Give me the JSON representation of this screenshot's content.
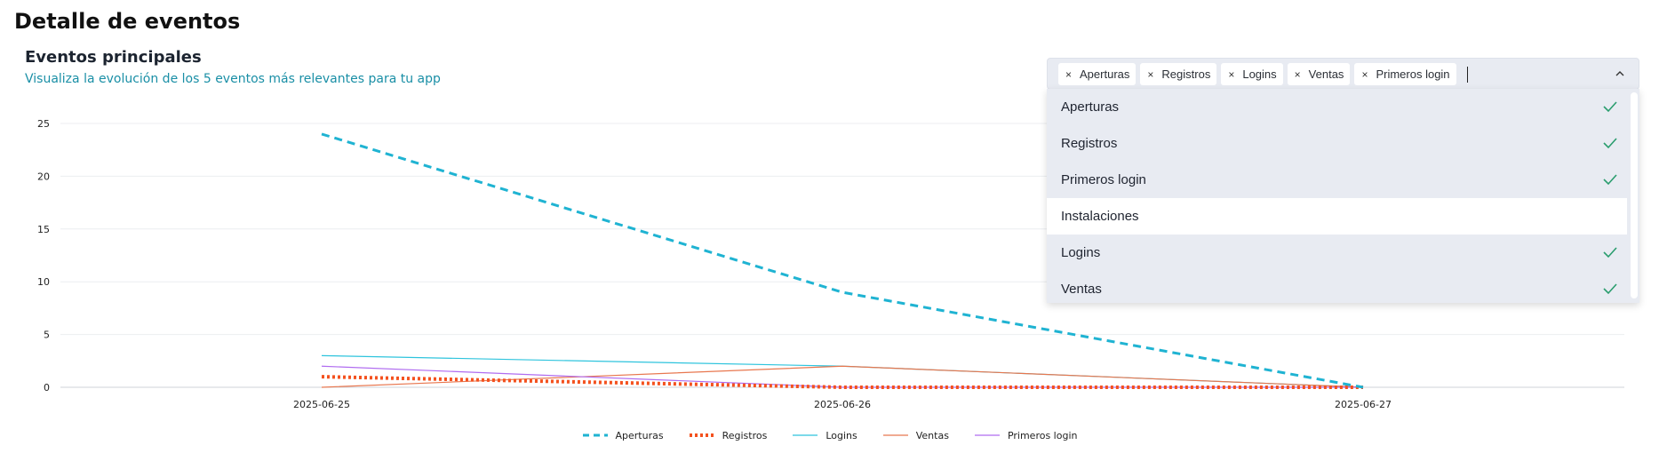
{
  "page": {
    "title": "Detalle de eventos"
  },
  "card": {
    "title": "Eventos principales",
    "subtitle": "Visualiza la evolución de los 5 eventos más relevantes para tu app"
  },
  "colors": {
    "aperturas": "#1fb3d2",
    "registros": "#f4511e",
    "logins": "#2ec4dd",
    "ventas": "#e8774f",
    "primeros_login": "#b06cf0",
    "check": "#2a9d6e"
  },
  "multiselect": {
    "chips": [
      "Aperturas",
      "Registros",
      "Logins",
      "Ventas",
      "Primeros login"
    ],
    "remove_glyph": "×",
    "options": [
      {
        "label": "Aperturas",
        "selected": true
      },
      {
        "label": "Registros",
        "selected": true
      },
      {
        "label": "Primeros login",
        "selected": true
      },
      {
        "label": "Instalaciones",
        "selected": false
      },
      {
        "label": "Logins",
        "selected": true
      },
      {
        "label": "Ventas",
        "selected": true
      }
    ],
    "chevron_icon": "chevron-up-icon",
    "check_icon": "check-icon"
  },
  "chart_data": {
    "type": "line",
    "x": [
      "2025-06-25",
      "2025-06-26",
      "2025-06-27"
    ],
    "ylim": [
      0,
      25
    ],
    "yticks": [
      0,
      5,
      10,
      15,
      20,
      25
    ],
    "grid": true,
    "legend_position": "bottom",
    "series": [
      {
        "name": "Aperturas",
        "values": [
          24,
          9,
          0
        ],
        "style": "dashed",
        "color_key": "aperturas"
      },
      {
        "name": "Registros",
        "values": [
          1,
          0,
          0
        ],
        "style": "dotted",
        "color_key": "registros"
      },
      {
        "name": "Logins",
        "values": [
          3,
          2,
          0
        ],
        "style": "solid",
        "color_key": "logins"
      },
      {
        "name": "Ventas",
        "values": [
          0,
          2,
          0
        ],
        "style": "solid",
        "color_key": "ventas"
      },
      {
        "name": "Primeros login",
        "values": [
          2,
          0,
          0
        ],
        "style": "solid",
        "color_key": "primeros_login"
      }
    ]
  }
}
